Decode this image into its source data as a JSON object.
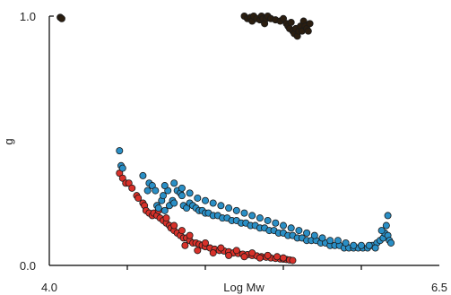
{
  "chart_data": {
    "type": "scatter",
    "title": "",
    "xlabel": "Log Mw",
    "ylabel": "g",
    "xlim": [
      4.0,
      6.5
    ],
    "ylim": [
      0.0,
      1.0
    ],
    "x_tick_labels": [
      {
        "value": 4.0,
        "label": "4.0"
      },
      {
        "value": 6.5,
        "label": "6.5"
      }
    ],
    "x_minor_ticks": [
      4.5,
      5.0,
      5.5,
      6.0
    ],
    "y_tick_labels": [
      {
        "value": 0.0,
        "label": "0.0"
      },
      {
        "value": 1.0,
        "label": "1.0"
      }
    ],
    "grid": false,
    "series": [
      {
        "color": "#d8312a",
        "points": [
          [
            4.45,
            0.37
          ],
          [
            4.47,
            0.35
          ],
          [
            4.49,
            0.33
          ],
          [
            4.51,
            0.33
          ],
          [
            4.53,
            0.31
          ],
          [
            4.56,
            0.28
          ],
          [
            4.57,
            0.27
          ],
          [
            4.6,
            0.25
          ],
          [
            4.61,
            0.24
          ],
          [
            4.62,
            0.22
          ],
          [
            4.64,
            0.21
          ],
          [
            4.66,
            0.2
          ],
          [
            4.67,
            0.21
          ],
          [
            4.69,
            0.2
          ],
          [
            4.71,
            0.19
          ],
          [
            4.73,
            0.18
          ],
          [
            4.75,
            0.17
          ],
          [
            4.77,
            0.16
          ],
          [
            4.78,
            0.15
          ],
          [
            4.8,
            0.14
          ],
          [
            4.82,
            0.13
          ],
          [
            4.84,
            0.12
          ],
          [
            4.86,
            0.11
          ],
          [
            4.88,
            0.11
          ],
          [
            4.9,
            0.1
          ],
          [
            4.92,
            0.09
          ],
          [
            4.94,
            0.09
          ],
          [
            4.96,
            0.085
          ],
          [
            4.98,
            0.08
          ],
          [
            5.0,
            0.075
          ],
          [
            5.03,
            0.07
          ],
          [
            5.06,
            0.065
          ],
          [
            5.09,
            0.06
          ],
          [
            5.12,
            0.058
          ],
          [
            5.15,
            0.055
          ],
          [
            5.18,
            0.05
          ],
          [
            5.21,
            0.048
          ],
          [
            5.24,
            0.045
          ],
          [
            5.27,
            0.043
          ],
          [
            5.3,
            0.04
          ],
          [
            5.33,
            0.038
          ],
          [
            5.36,
            0.035
          ],
          [
            5.39,
            0.033
          ],
          [
            5.42,
            0.03
          ],
          [
            5.45,
            0.028
          ],
          [
            5.48,
            0.026
          ],
          [
            5.5,
            0.025
          ],
          [
            5.52,
            0.024
          ],
          [
            5.54,
            0.022
          ],
          [
            5.56,
            0.02
          ],
          [
            4.7,
            0.22
          ],
          [
            4.75,
            0.19
          ],
          [
            4.8,
            0.16
          ],
          [
            4.85,
            0.14
          ],
          [
            4.9,
            0.12
          ],
          [
            5.0,
            0.09
          ],
          [
            5.1,
            0.07
          ],
          [
            5.2,
            0.06
          ],
          [
            5.3,
            0.05
          ],
          [
            5.4,
            0.04
          ],
          [
            5.46,
            0.035
          ],
          [
            5.5,
            0.03
          ],
          [
            5.35,
            0.03
          ],
          [
            5.25,
            0.035
          ],
          [
            5.15,
            0.04
          ],
          [
            5.05,
            0.05
          ],
          [
            4.95,
            0.06
          ],
          [
            4.87,
            0.08
          ]
        ]
      },
      {
        "color": "#2a8fc6",
        "points": [
          [
            4.45,
            0.46
          ],
          [
            4.46,
            0.4
          ],
          [
            4.47,
            0.39
          ],
          [
            4.6,
            0.36
          ],
          [
            4.63,
            0.3
          ],
          [
            4.64,
            0.33
          ],
          [
            4.66,
            0.32
          ],
          [
            4.68,
            0.3
          ],
          [
            4.69,
            0.24
          ],
          [
            4.7,
            0.23
          ],
          [
            4.72,
            0.26
          ],
          [
            4.73,
            0.28
          ],
          [
            4.74,
            0.22
          ],
          [
            4.76,
            0.3
          ],
          [
            4.77,
            0.24
          ],
          [
            4.79,
            0.26
          ],
          [
            4.8,
            0.25
          ],
          [
            4.82,
            0.3
          ],
          [
            4.84,
            0.29
          ],
          [
            4.85,
            0.28
          ],
          [
            4.86,
            0.24
          ],
          [
            4.88,
            0.23
          ],
          [
            4.9,
            0.25
          ],
          [
            4.92,
            0.24
          ],
          [
            4.94,
            0.23
          ],
          [
            4.96,
            0.22
          ],
          [
            4.98,
            0.22
          ],
          [
            5.0,
            0.21
          ],
          [
            5.02,
            0.21
          ],
          [
            5.05,
            0.2
          ],
          [
            5.08,
            0.2
          ],
          [
            5.11,
            0.19
          ],
          [
            5.14,
            0.19
          ],
          [
            5.17,
            0.18
          ],
          [
            5.2,
            0.18
          ],
          [
            5.23,
            0.17
          ],
          [
            5.26,
            0.17
          ],
          [
            5.29,
            0.16
          ],
          [
            5.32,
            0.16
          ],
          [
            5.35,
            0.15
          ],
          [
            5.38,
            0.15
          ],
          [
            5.41,
            0.14
          ],
          [
            5.44,
            0.14
          ],
          [
            5.47,
            0.13
          ],
          [
            5.5,
            0.13
          ],
          [
            5.53,
            0.12
          ],
          [
            5.56,
            0.12
          ],
          [
            5.59,
            0.11
          ],
          [
            5.62,
            0.11
          ],
          [
            5.65,
            0.1
          ],
          [
            5.68,
            0.1
          ],
          [
            5.71,
            0.1
          ],
          [
            5.74,
            0.09
          ],
          [
            5.77,
            0.09
          ],
          [
            5.8,
            0.08
          ],
          [
            5.83,
            0.08
          ],
          [
            5.86,
            0.08
          ],
          [
            5.89,
            0.07
          ],
          [
            5.92,
            0.07
          ],
          [
            5.95,
            0.07
          ],
          [
            5.98,
            0.07
          ],
          [
            6.01,
            0.07
          ],
          [
            6.04,
            0.07
          ],
          [
            6.07,
            0.08
          ],
          [
            6.1,
            0.09
          ],
          [
            6.12,
            0.1
          ],
          [
            6.14,
            0.11
          ],
          [
            6.15,
            0.13
          ],
          [
            6.16,
            0.16
          ],
          [
            6.17,
            0.12
          ],
          [
            6.18,
            0.1
          ],
          [
            6.19,
            0.09
          ],
          [
            4.74,
            0.32
          ],
          [
            4.8,
            0.33
          ],
          [
            4.85,
            0.31
          ],
          [
            4.9,
            0.29
          ],
          [
            4.95,
            0.27
          ],
          [
            5.0,
            0.26
          ],
          [
            5.05,
            0.25
          ],
          [
            5.1,
            0.24
          ],
          [
            5.15,
            0.23
          ],
          [
            5.2,
            0.22
          ],
          [
            5.25,
            0.21
          ],
          [
            5.3,
            0.2
          ],
          [
            5.35,
            0.19
          ],
          [
            5.4,
            0.18
          ],
          [
            5.45,
            0.17
          ],
          [
            5.5,
            0.16
          ],
          [
            5.55,
            0.15
          ],
          [
            5.6,
            0.14
          ],
          [
            5.65,
            0.13
          ],
          [
            5.7,
            0.12
          ],
          [
            5.75,
            0.11
          ],
          [
            5.8,
            0.1
          ],
          [
            5.85,
            0.1
          ],
          [
            5.9,
            0.09
          ],
          [
            5.95,
            0.08
          ],
          [
            6.0,
            0.08
          ],
          [
            6.05,
            0.08
          ],
          [
            6.09,
            0.07
          ],
          [
            6.13,
            0.14
          ],
          [
            6.17,
            0.2
          ]
        ]
      },
      {
        "color": "#2b1e10",
        "points": [
          [
            4.07,
            0.995
          ],
          [
            4.08,
            0.99
          ],
          [
            5.25,
            1.0
          ],
          [
            5.27,
            0.99
          ],
          [
            5.29,
            0.995
          ],
          [
            5.3,
            0.98
          ],
          [
            5.31,
            1.0
          ],
          [
            5.33,
            0.99
          ],
          [
            5.35,
            0.985
          ],
          [
            5.36,
            1.0
          ],
          [
            5.37,
            0.99
          ],
          [
            5.38,
            0.97
          ],
          [
            5.39,
            0.99
          ],
          [
            5.4,
            1.0
          ],
          [
            5.42,
            0.99
          ],
          [
            5.45,
            0.985
          ],
          [
            5.48,
            0.98
          ],
          [
            5.5,
            0.99
          ],
          [
            5.52,
            0.97
          ],
          [
            5.53,
            0.96
          ],
          [
            5.54,
            0.95
          ],
          [
            5.55,
            0.975
          ],
          [
            5.56,
            0.94
          ],
          [
            5.57,
            0.93
          ],
          [
            5.58,
            0.95
          ],
          [
            5.59,
            0.92
          ],
          [
            5.6,
            0.94
          ],
          [
            5.61,
            0.96
          ],
          [
            5.62,
            0.94
          ],
          [
            5.63,
            0.98
          ],
          [
            5.64,
            0.96
          ],
          [
            5.65,
            0.95
          ],
          [
            5.66,
            0.94
          ],
          [
            5.67,
            0.97
          ]
        ]
      }
    ]
  }
}
